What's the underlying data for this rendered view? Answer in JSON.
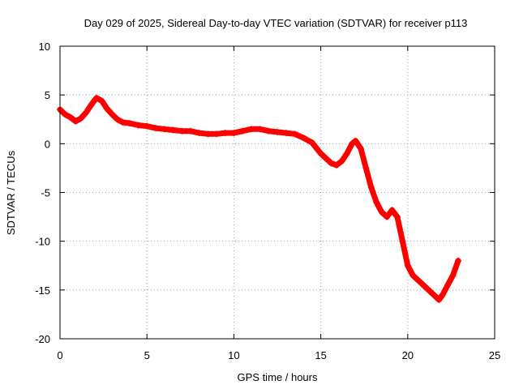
{
  "chart_data": {
    "type": "scatter",
    "title": "Day 029 of 2025, Sidereal Day-to-day VTEC variation (SDTVAR) for receiver p113",
    "xlabel": "GPS time / hours",
    "ylabel": "SDTVAR / TECUs",
    "xlim": [
      0,
      25
    ],
    "ylim": [
      -20,
      10
    ],
    "xticks": [
      0,
      5,
      10,
      15,
      20,
      25
    ],
    "yticks": [
      10,
      5,
      0,
      -5,
      -10,
      -15,
      -20
    ],
    "grid": true,
    "marker": "+",
    "color": "#ff0000",
    "series": [
      {
        "name": "SDTVAR",
        "x": [
          0.0,
          0.3,
          0.6,
          0.9,
          1.2,
          1.5,
          1.8,
          2.1,
          2.4,
          2.7,
          3.0,
          3.3,
          3.6,
          4.0,
          4.5,
          5.0,
          5.5,
          6.0,
          6.5,
          7.0,
          7.5,
          8.0,
          8.5,
          9.0,
          9.5,
          10.0,
          10.5,
          11.0,
          11.5,
          12.0,
          12.5,
          13.0,
          13.5,
          14.0,
          14.5,
          15.0,
          15.3,
          15.6,
          15.9,
          16.2,
          16.5,
          16.8,
          17.0,
          17.3,
          17.6,
          17.9,
          18.2,
          18.5,
          18.8,
          19.1,
          19.4,
          19.7,
          20.0,
          20.3,
          20.6,
          20.9,
          21.2,
          21.5,
          21.8,
          22.0,
          22.3,
          22.6,
          22.9
        ],
        "y": [
          3.5,
          3.0,
          2.7,
          2.3,
          2.6,
          3.2,
          4.0,
          4.7,
          4.4,
          3.6,
          3.0,
          2.5,
          2.2,
          2.1,
          1.9,
          1.8,
          1.6,
          1.5,
          1.4,
          1.3,
          1.3,
          1.1,
          1.0,
          1.0,
          1.1,
          1.1,
          1.3,
          1.5,
          1.5,
          1.3,
          1.2,
          1.1,
          1.0,
          0.6,
          0.1,
          -1.0,
          -1.5,
          -2.0,
          -2.2,
          -1.8,
          -1.0,
          0.0,
          0.3,
          -0.5,
          -2.5,
          -4.5,
          -6.0,
          -7.0,
          -7.5,
          -6.8,
          -7.5,
          -10.0,
          -12.5,
          -13.5,
          -14.0,
          -14.5,
          -15.0,
          -15.5,
          -16.0,
          -15.5,
          -14.5,
          -13.5,
          -12.0
        ]
      }
    ]
  }
}
